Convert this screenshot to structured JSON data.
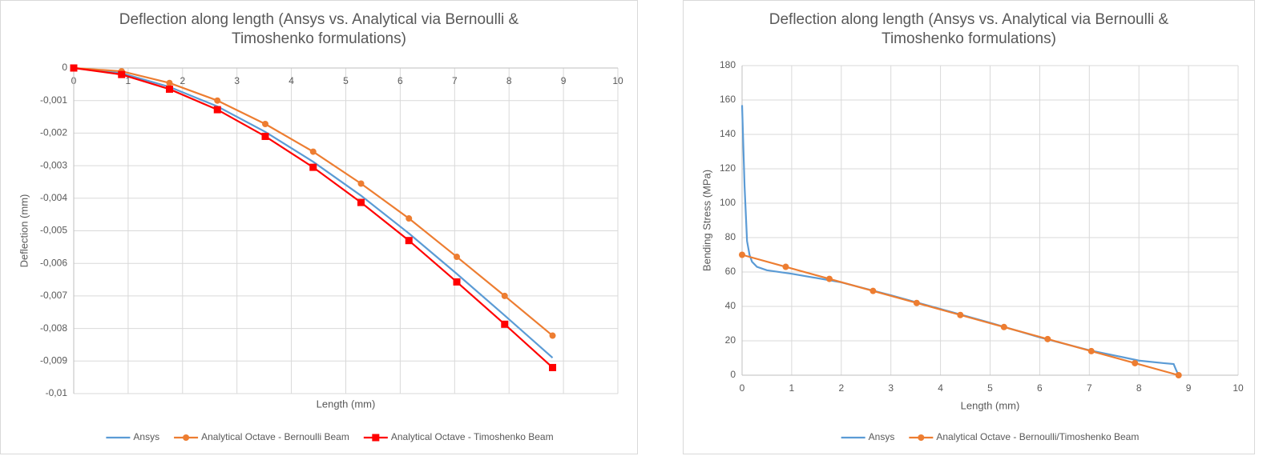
{
  "chart_data": [
    {
      "type": "line",
      "title": "Deflection along length (Ansys vs. Analytical via Bernoulli & Timoshenko formulations)",
      "x_label": "Length (mm)",
      "y_label": "Deflection (mm)",
      "grid": true,
      "legend": "bottom",
      "xlim": [
        0,
        10
      ],
      "xticks": [
        0,
        1,
        2,
        3,
        4,
        5,
        6,
        7,
        8,
        9,
        10
      ],
      "ylim": [
        -0.01,
        0
      ],
      "yticks": [
        0,
        {
          "value": -0.001,
          "label": "-0,001"
        },
        {
          "value": -0.002,
          "label": "-0,002"
        },
        {
          "value": -0.003,
          "label": "-0,003"
        },
        {
          "value": -0.004,
          "label": "-0,004"
        },
        {
          "value": -0.005,
          "label": "-0,005"
        },
        {
          "value": -0.006,
          "label": "-0,006"
        },
        {
          "value": -0.007,
          "label": "-0,007"
        },
        {
          "value": -0.008,
          "label": "-0,008"
        },
        {
          "value": -0.009,
          "label": "-0,009"
        },
        {
          "value": -0.01,
          "label": "-0,01"
        }
      ],
      "series": [
        {
          "name": "Ansys",
          "color": "#5b9bd5",
          "marker": "none",
          "x": [
            0,
            0.88,
            1.76,
            2.64,
            3.52,
            4.4,
            5.28,
            6.16,
            7.04,
            7.92,
            8.8
          ],
          "values": [
            0,
            -0.00016,
            -0.00058,
            -0.00118,
            -0.00196,
            -0.00288,
            -0.00392,
            -0.00508,
            -0.00632,
            -0.0076,
            -0.0089
          ]
        },
        {
          "name": "Analytical Octave - Bernoulli Beam",
          "color": "#ed7d31",
          "marker": "circle",
          "x": [
            0,
            0.88,
            1.76,
            2.64,
            3.52,
            4.4,
            5.28,
            6.16,
            7.04,
            7.92,
            8.8
          ],
          "values": [
            0,
            -0.0001,
            -0.00046,
            -0.001,
            -0.00172,
            -0.00257,
            -0.00355,
            -0.00462,
            -0.0058,
            -0.007,
            -0.00822
          ]
        },
        {
          "name": "Analytical Octave - Timoshenko Beam",
          "color": "#ff0000",
          "marker": "square",
          "x": [
            0,
            0.88,
            1.76,
            2.64,
            3.52,
            4.4,
            5.28,
            6.16,
            7.04,
            7.92,
            8.8
          ],
          "values": [
            0,
            -0.0002,
            -0.00065,
            -0.00128,
            -0.0021,
            -0.00305,
            -0.00413,
            -0.0053,
            -0.00657,
            -0.00787,
            -0.0092
          ]
        }
      ]
    },
    {
      "type": "line",
      "title": "Deflection along length (Ansys vs. Analytical via Bernoulli & Timoshenko formulations)",
      "x_label": "Length (mm)",
      "y_label": "Bending Stress (MPa)",
      "grid": true,
      "legend": "bottom",
      "xlim": [
        0,
        10
      ],
      "xticks": [
        0,
        1,
        2,
        3,
        4,
        5,
        6,
        7,
        8,
        9,
        10
      ],
      "ylim": [
        0,
        180
      ],
      "yticks": [
        0,
        20,
        40,
        60,
        80,
        100,
        120,
        140,
        160,
        180
      ],
      "series": [
        {
          "name": "Ansys",
          "color": "#5b9bd5",
          "marker": "none",
          "x": [
            0,
            0.05,
            0.1,
            0.15,
            0.2,
            0.3,
            0.5,
            1,
            2,
            3,
            4,
            5,
            6,
            7,
            8,
            8.5,
            8.7,
            8.75,
            8.8
          ],
          "values": [
            157,
            110,
            78,
            70,
            66,
            63,
            61,
            59,
            54,
            46.5,
            38.5,
            30.5,
            22,
            14.5,
            8.5,
            7,
            6.5,
            3,
            0
          ]
        },
        {
          "name": "Analytical Octave - Bernoulli/Timoshenko Beam",
          "color": "#ed7d31",
          "marker": "circle",
          "x": [
            0,
            0.88,
            1.76,
            2.64,
            3.52,
            4.4,
            5.28,
            6.16,
            7.04,
            7.92,
            8.8
          ],
          "values": [
            70,
            63,
            56,
            49,
            42,
            35,
            28,
            21,
            14,
            7,
            0
          ]
        }
      ]
    }
  ]
}
